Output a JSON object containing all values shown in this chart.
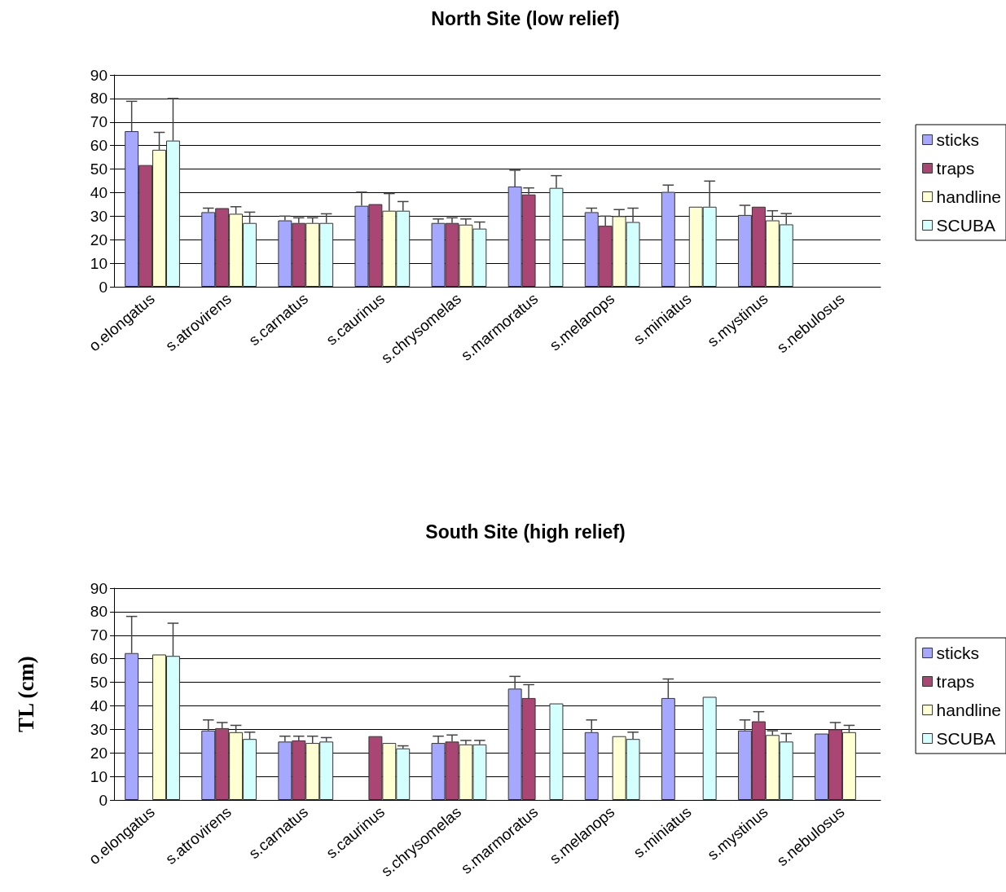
{
  "chart_data": [
    {
      "type": "bar",
      "title": "North Site (low relief)",
      "categories": [
        "o.elongatus",
        "s.atrovirens",
        "s.carnatus",
        "s.caurinus",
        "s.chrysomelas",
        "s.marmoratus",
        "s.melanops",
        "s.miniatus",
        "s.mystinus",
        "s.nebulosus"
      ],
      "ylim": [
        0,
        90
      ],
      "yticks": [
        0,
        10,
        20,
        30,
        40,
        50,
        60,
        70,
        80,
        90
      ],
      "grid": "y",
      "legend": "right",
      "series": [
        {
          "name": "sticks",
          "color": "#a6a8ff",
          "values": [
            66.1,
            31.7,
            28.2,
            34.4,
            27.1,
            42.6,
            31.7,
            40.3,
            30.5,
            null
          ],
          "errors": [
            [
              66.1,
              78.8
            ],
            [
              31.7,
              33.4
            ],
            [
              28.2,
              30
            ],
            [
              34.4,
              40.2
            ],
            [
              27.1,
              28.8
            ],
            [
              42.6,
              49.5
            ],
            [
              31.7,
              33.4
            ],
            [
              40.3,
              43.2
            ],
            [
              30.5,
              34.6
            ],
            null
          ]
        },
        {
          "name": "traps",
          "color": "#a94673",
          "values": [
            51.7,
            33.4,
            27.1,
            35.1,
            27.1,
            39.2,
            25.9,
            null,
            34,
            null
          ],
          "errors": [
            null,
            null,
            [
              27.1,
              29.3
            ],
            null,
            [
              27.1,
              29.3
            ],
            [
              39.2,
              42
            ],
            [
              25.9,
              30
            ],
            null,
            null,
            null
          ]
        },
        {
          "name": "handline",
          "color": "#ffffd4",
          "values": [
            58.2,
            31,
            27.1,
            32.3,
            26.4,
            null,
            30,
            34,
            28.2,
            null
          ],
          "errors": [
            [
              58.2,
              65.6
            ],
            [
              31,
              34
            ],
            [
              27.1,
              29.3
            ],
            [
              32.3,
              39.6
            ],
            [
              26.4,
              28.8
            ],
            null,
            [
              30,
              32.8
            ],
            null,
            [
              28.2,
              32.3
            ],
            null
          ]
        },
        {
          "name": "SCUBA",
          "color": "#d4ffff",
          "values": [
            62.1,
            27.1,
            27.1,
            32.3,
            24.7,
            42,
            27.5,
            34,
            26.5,
            null
          ],
          "errors": [
            [
              62.1,
              80
            ],
            [
              27.1,
              31.7
            ],
            [
              27.1,
              31
            ],
            [
              32.3,
              36.2
            ],
            [
              24.7,
              27.5
            ],
            [
              42,
              47.2
            ],
            [
              27.5,
              33.4
            ],
            [
              34,
              44.9
            ],
            [
              26.5,
              31.1
            ],
            null
          ]
        }
      ]
    },
    {
      "type": "bar",
      "title": "South Site (high relief)",
      "ylabel": "TL (cm)",
      "categories": [
        "o.elongatus",
        "s.atrovirens",
        "s.carnatus",
        "s.caurinus",
        "s.chrysomelas",
        "s.marmoratus",
        "s.melanops",
        "s.miniatus",
        "s.mystinus",
        "s.nebulosus"
      ],
      "ylim": [
        0,
        90
      ],
      "yticks": [
        0,
        10,
        20,
        30,
        40,
        50,
        60,
        70,
        80,
        90
      ],
      "grid": "y",
      "legend": "right",
      "series": [
        {
          "name": "sticks",
          "color": "#a6a8ff",
          "values": [
            62.4,
            29.5,
            24.8,
            null,
            24.2,
            47.3,
            28.8,
            43.3,
            29.5,
            28.2
          ],
          "errors": [
            [
              62.4,
              78
            ],
            [
              29.5,
              34
            ],
            [
              24.8,
              27.1
            ],
            null,
            [
              24.2,
              27.1
            ],
            [
              47.3,
              52.5
            ],
            [
              28.8,
              34
            ],
            [
              43.3,
              51.4
            ],
            [
              29.5,
              34
            ],
            null
          ]
        },
        {
          "name": "traps",
          "color": "#a94673",
          "values": [
            null,
            30.5,
            25.3,
            27.1,
            24.8,
            43.3,
            null,
            null,
            33.4,
            30
          ],
          "errors": [
            null,
            [
              30.5,
              32.9
            ],
            [
              25.3,
              27.1
            ],
            null,
            [
              24.8,
              27.6
            ],
            [
              43.3,
              49
            ],
            null,
            null,
            [
              33.4,
              37.5
            ],
            [
              30,
              32.9
            ]
          ]
        },
        {
          "name": "handline",
          "color": "#ffffd4",
          "values": [
            61.8,
            28.8,
            24.2,
            24.2,
            23.6,
            null,
            27.1,
            null,
            27.6,
            28.8
          ],
          "errors": [
            null,
            [
              28.8,
              31.7
            ],
            [
              24.2,
              27.1
            ],
            null,
            [
              23.6,
              25.3
            ],
            null,
            null,
            null,
            [
              27.6,
              29.4
            ],
            [
              28.8,
              31.7
            ]
          ]
        },
        {
          "name": "SCUBA",
          "color": "#d4ffff",
          "values": [
            61.2,
            25.9,
            24.8,
            21.9,
            23.6,
            41,
            25.9,
            43.8,
            24.8,
            null
          ],
          "errors": [
            [
              61.2,
              75.1
            ],
            [
              25.9,
              28.8
            ],
            [
              24.8,
              26.5
            ],
            [
              21.9,
              23
            ],
            [
              23.6,
              25.3
            ],
            null,
            [
              25.9,
              28.8
            ],
            null,
            [
              24.8,
              28.2
            ],
            null
          ]
        }
      ]
    }
  ]
}
